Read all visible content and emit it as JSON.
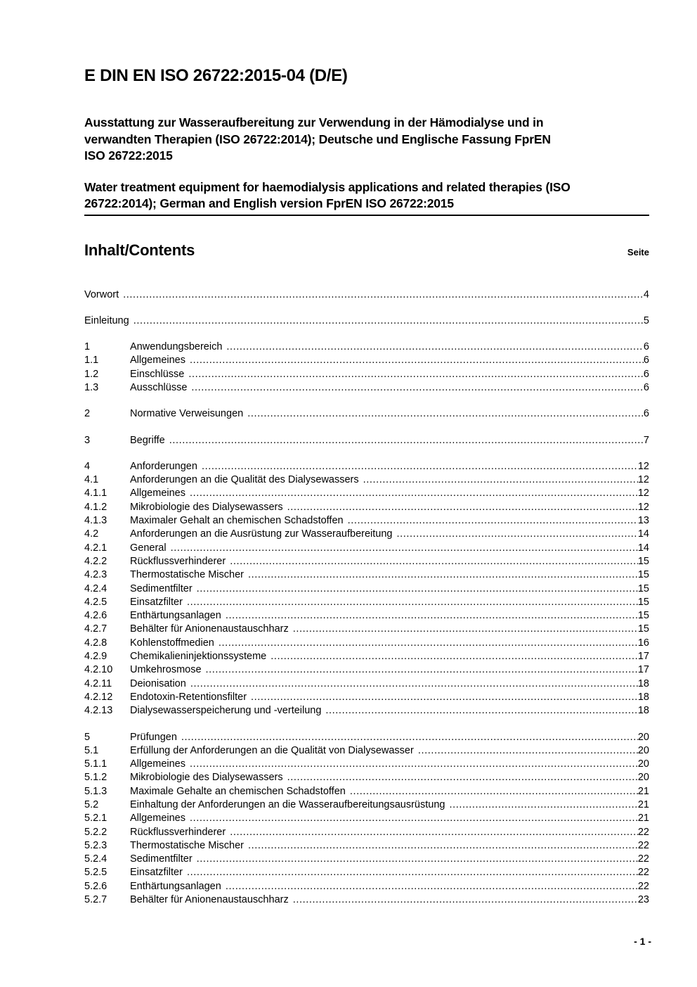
{
  "page": {
    "doc_number": "E DIN EN ISO 26722:2015-04 (D/E)",
    "title_de_lines": [
      "Ausstattung zur Wasseraufbereitung zur Verwendung in der Hämodialyse und in",
      "verwandten Therapien (ISO 26722:2014); Deutsche und Englische Fassung FprEN",
      "ISO 26722:2015"
    ],
    "title_en_lines": [
      "Water treatment equipment for haemodialysis applications and related therapies (ISO",
      "26722:2014); German and English version FprEN ISO 26722:2015"
    ],
    "contents_heading": "Inhalt/Contents",
    "page_column_label": "Seite",
    "footer_page_number": "- 1 -"
  },
  "toc": {
    "groups": [
      {
        "entries": [
          {
            "num": "",
            "label": "Vorwort",
            "page": "4"
          }
        ]
      },
      {
        "entries": [
          {
            "num": "",
            "label": "Einleitung",
            "page": "5"
          }
        ]
      },
      {
        "entries": [
          {
            "num": "1",
            "label": "Anwendungsbereich",
            "page": "6"
          },
          {
            "num": "1.1",
            "label": "Allgemeines",
            "page": "6"
          },
          {
            "num": "1.2",
            "label": "Einschlüsse",
            "page": "6"
          },
          {
            "num": "1.3",
            "label": "Ausschlüsse",
            "page": "6"
          }
        ]
      },
      {
        "entries": [
          {
            "num": "2",
            "label": "Normative Verweisungen",
            "page": "6"
          }
        ]
      },
      {
        "entries": [
          {
            "num": "3",
            "label": "Begriffe",
            "page": "7"
          }
        ]
      },
      {
        "entries": [
          {
            "num": "4",
            "label": "Anforderungen",
            "page": "12"
          },
          {
            "num": "4.1",
            "label": "Anforderungen an die Qualität des Dialysewassers",
            "page": "12"
          },
          {
            "num": "4.1.1",
            "label": "Allgemeines",
            "page": "12"
          },
          {
            "num": "4.1.2",
            "label": "Mikrobiologie des Dialysewassers",
            "page": "12"
          },
          {
            "num": "4.1.3",
            "label": "Maximaler Gehalt an chemischen Schadstoffen",
            "page": "13"
          },
          {
            "num": "4.2",
            "label": "Anforderungen an die Ausrüstung zur Wasseraufbereitung",
            "page": "14"
          },
          {
            "num": "4.2.1",
            "label": "General",
            "page": "14"
          },
          {
            "num": "4.2.2",
            "label": "Rückflussverhinderer",
            "page": "15"
          },
          {
            "num": "4.2.3",
            "label": "Thermostatische Mischer",
            "page": "15"
          },
          {
            "num": "4.2.4",
            "label": "Sedimentfilter",
            "page": "15"
          },
          {
            "num": "4.2.5",
            "label": "Einsatzfilter",
            "page": "15"
          },
          {
            "num": "4.2.6",
            "label": "Enthärtungsanlagen",
            "page": "15"
          },
          {
            "num": "4.2.7",
            "label": "Behälter für Anionenaustauschharz",
            "page": "15"
          },
          {
            "num": "4.2.8",
            "label": "Kohlenstoffmedien",
            "page": "16"
          },
          {
            "num": "4.2.9",
            "label": "Chemikalieninjektionssysteme",
            "page": "17"
          },
          {
            "num": "4.2.10",
            "label": "Umkehrosmose",
            "page": "17"
          },
          {
            "num": "4.2.11",
            "label": "Deionisation",
            "page": "18"
          },
          {
            "num": "4.2.12",
            "label": "Endotoxin-Retentionsfilter",
            "page": "18"
          },
          {
            "num": "4.2.13",
            "label": "Dialysewasserspeicherung und -verteilung",
            "page": "18"
          }
        ]
      },
      {
        "entries": [
          {
            "num": "5",
            "label": "Prüfungen",
            "page": "20"
          },
          {
            "num": "5.1",
            "label": "Erfüllung der Anforderungen an die Qualität von Dialysewasser",
            "page": "20"
          },
          {
            "num": "5.1.1",
            "label": "Allgemeines",
            "page": "20"
          },
          {
            "num": "5.1.2",
            "label": "Mikrobiologie des Dialysewassers",
            "page": "20"
          },
          {
            "num": "5.1.3",
            "label": "Maximale Gehalte an chemischen Schadstoffen",
            "page": "21"
          },
          {
            "num": "5.2",
            "label": "Einhaltung der Anforderungen an die Wasseraufbereitungsausrüstung",
            "page": "21"
          },
          {
            "num": "5.2.1",
            "label": "Allgemeines",
            "page": "21"
          },
          {
            "num": "5.2.2",
            "label": "Rückflussverhinderer",
            "page": "22"
          },
          {
            "num": "5.2.3",
            "label": "Thermostatische Mischer",
            "page": "22"
          },
          {
            "num": "5.2.4",
            "label": "Sedimentfilter",
            "page": "22"
          },
          {
            "num": "5.2.5",
            "label": "Einsatzfilter",
            "page": "22"
          },
          {
            "num": "5.2.6",
            "label": "Enthärtungsanlagen",
            "page": "22"
          },
          {
            "num": "5.2.7",
            "label": "Behälter für Anionenaustauschharz",
            "page": "23"
          }
        ]
      }
    ]
  }
}
